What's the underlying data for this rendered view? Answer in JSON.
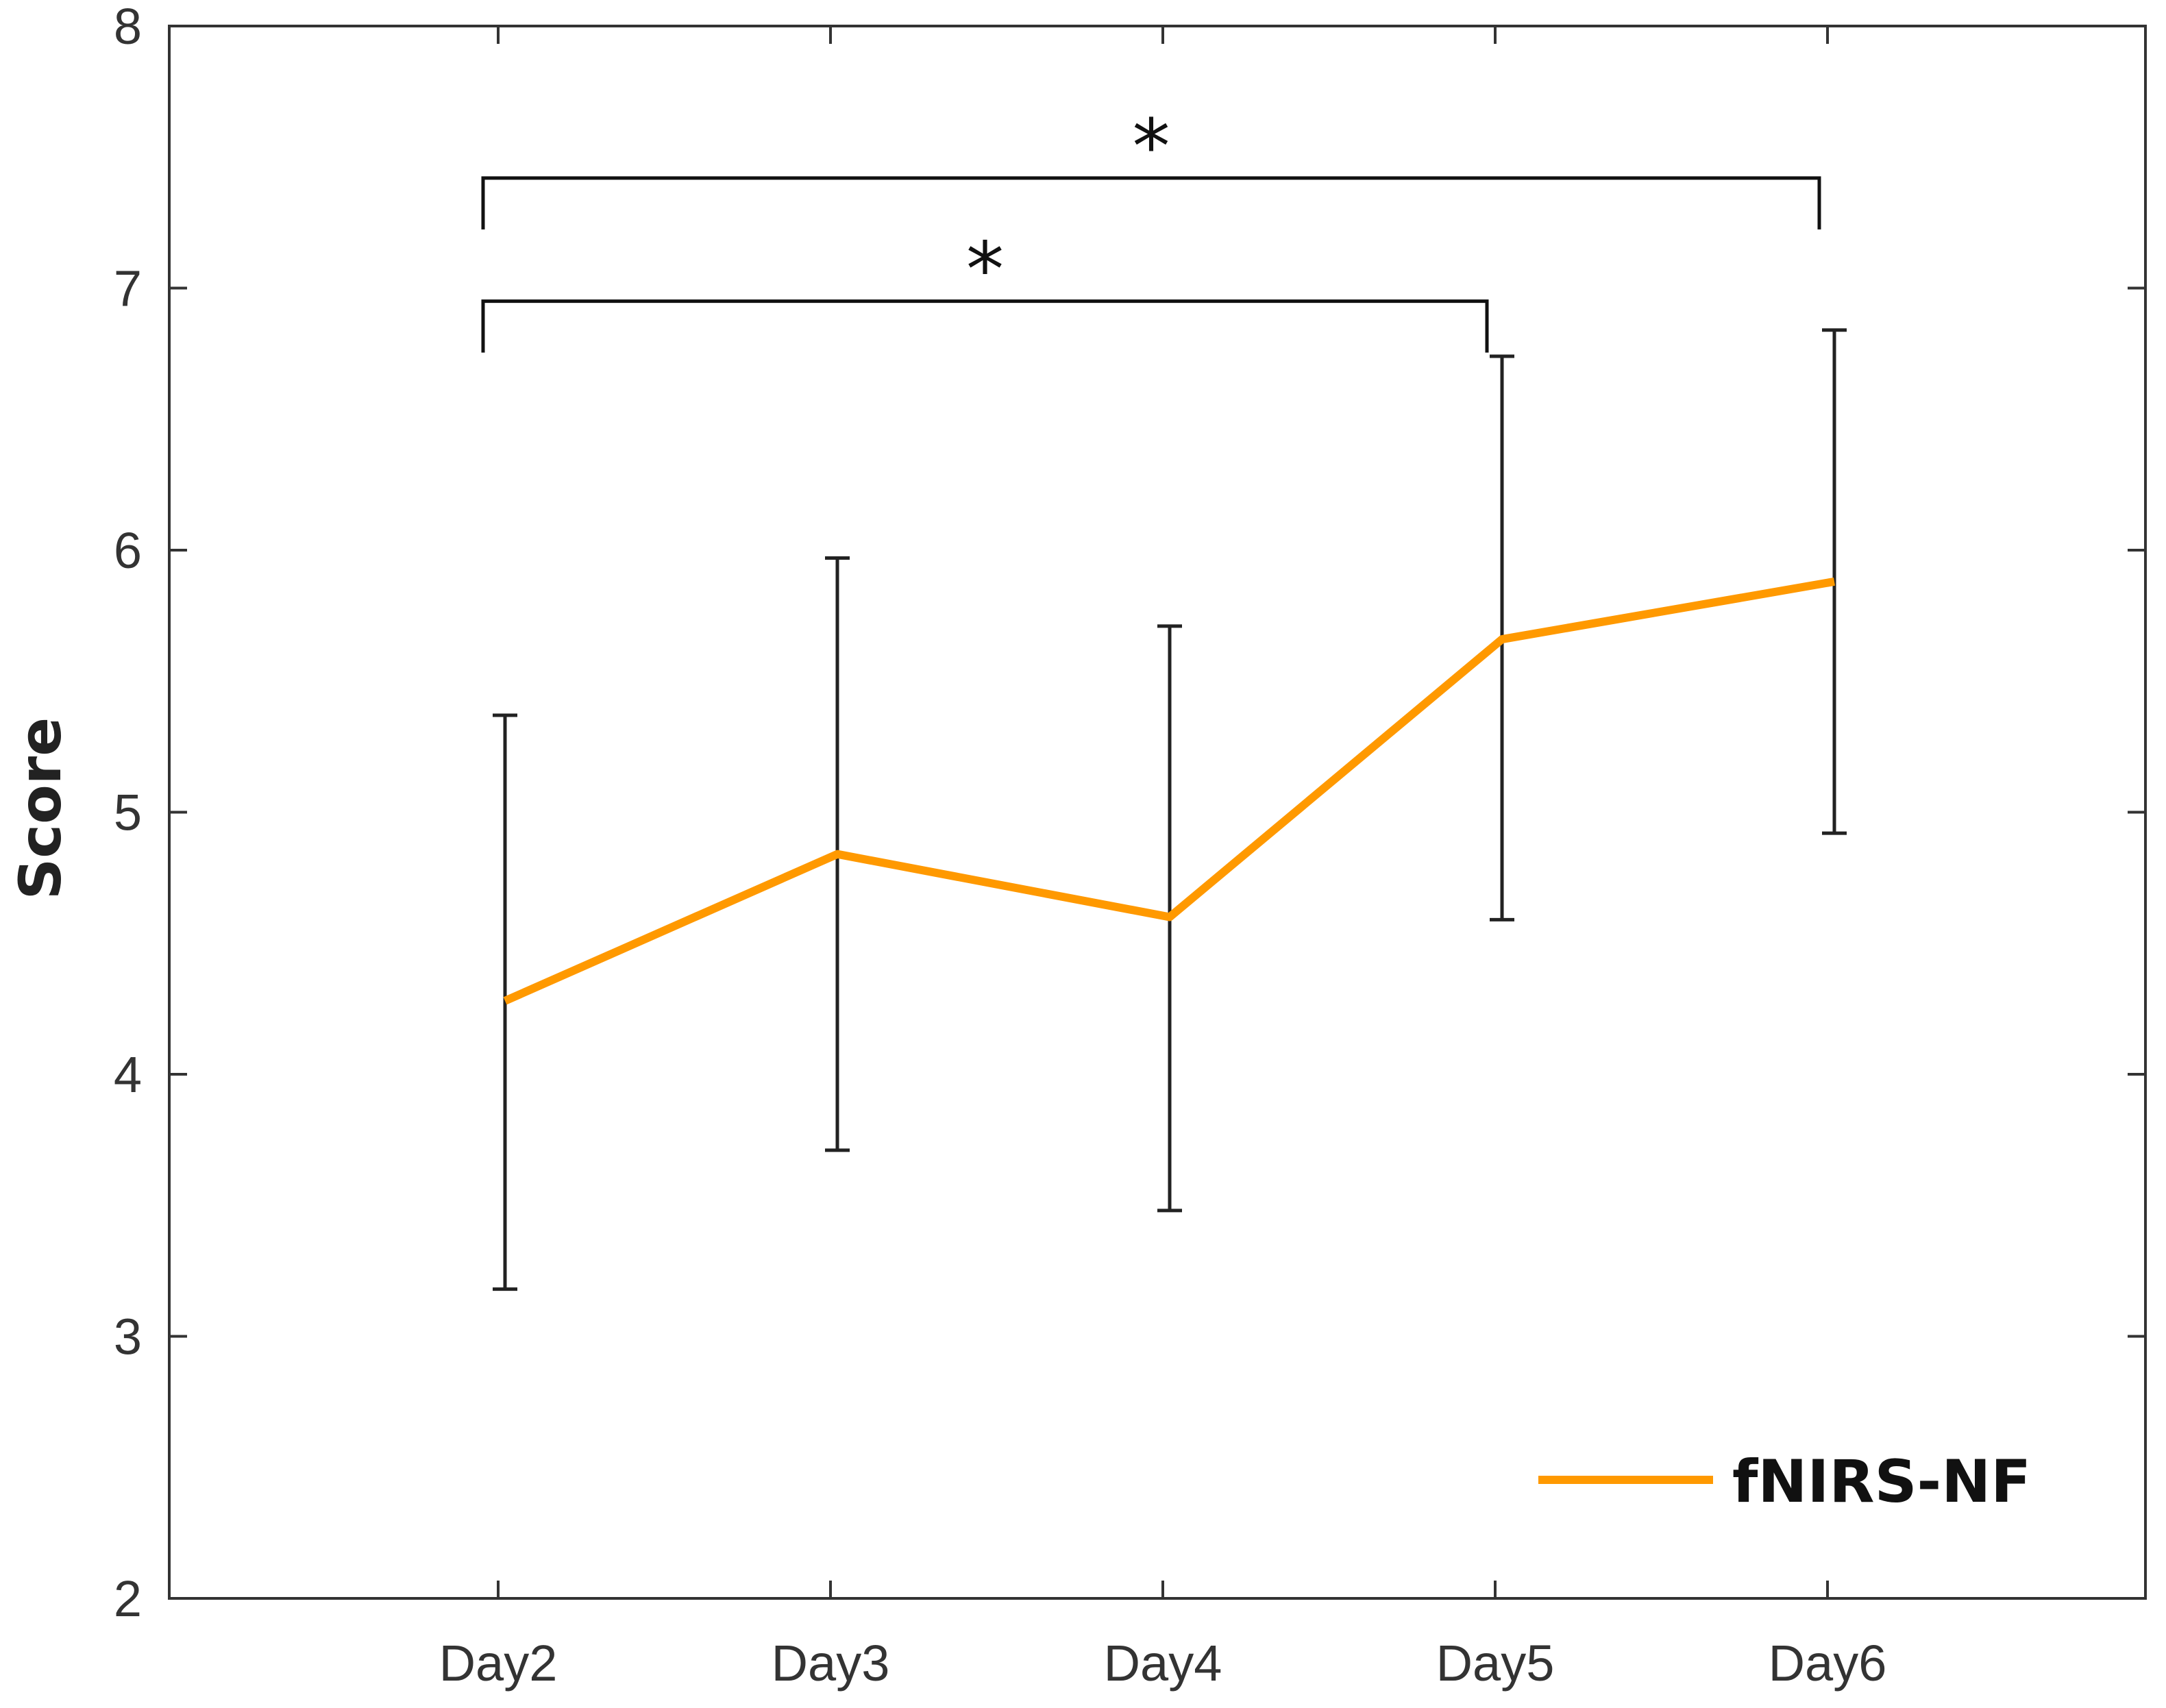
{
  "chart_data": {
    "type": "line",
    "title": "",
    "xlabel": "",
    "ylabel": "Score",
    "categories": [
      "Day2",
      "Day3",
      "Day4",
      "Day5",
      "Day6"
    ],
    "ylim": [
      2,
      8
    ],
    "yticks": [
      "2",
      "3",
      "4",
      "5",
      "6",
      "7",
      "8"
    ],
    "grid": false,
    "legend_position": "bottom-right",
    "series": [
      {
        "name": "fNIRS-NF",
        "color": "#FF9900",
        "values": [
          4.28,
          4.84,
          4.6,
          5.66,
          5.88
        ],
        "error_upper": [
          5.37,
          5.97,
          5.71,
          6.74,
          6.84
        ],
        "error_lower": [
          3.18,
          3.71,
          3.48,
          4.59,
          4.92
        ]
      }
    ],
    "significance": [
      {
        "from": "Day2",
        "to": "Day5",
        "label": "*",
        "level": 6.95
      },
      {
        "from": "Day2",
        "to": "Day6",
        "label": "*",
        "level": 7.42
      }
    ]
  }
}
